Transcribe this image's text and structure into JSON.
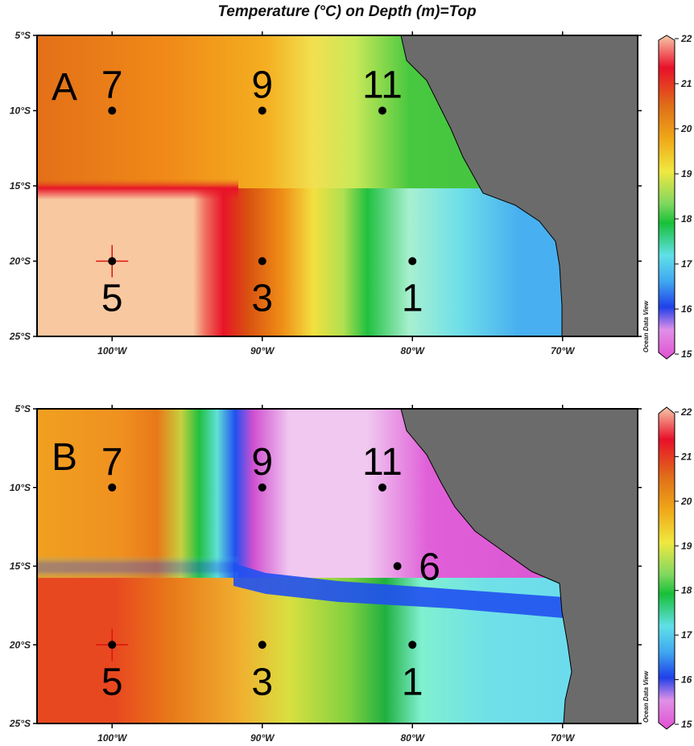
{
  "title": "Temperature (°C) on Depth (m)=Top",
  "watermark": "Ocean Data View",
  "chart_data": [
    {
      "panel": "A",
      "type": "heatmap",
      "variable": "Temperature (°C)",
      "lon_ticks": [
        "100°W",
        "90°W",
        "80°W",
        "70°W"
      ],
      "lat_ticks": [
        "5°S",
        "10°S",
        "15°S",
        "20°S",
        "25°S"
      ],
      "xlim": [
        -105,
        -65
      ],
      "ylim": [
        -25,
        -5
      ],
      "colorbar": {
        "min": 15,
        "max": 22,
        "ticks": [
          "22",
          "21",
          "20",
          "19",
          "18",
          "17",
          "16",
          "15"
        ]
      },
      "stations": [
        {
          "label": "7",
          "lon": -100,
          "lat": -10
        },
        {
          "label": "9",
          "lon": -90,
          "lat": -10
        },
        {
          "label": "11",
          "lon": -82,
          "lat": -10
        },
        {
          "label": "5",
          "lon": -100,
          "lat": -20,
          "marker": "cross"
        },
        {
          "label": "3",
          "lon": -90,
          "lat": -20
        },
        {
          "label": "1",
          "lon": -80,
          "lat": -20
        }
      ]
    },
    {
      "panel": "B",
      "type": "heatmap",
      "variable": "Temperature (°C)",
      "lon_ticks": [
        "100°W",
        "90°W",
        "80°W",
        "70°W"
      ],
      "lat_ticks": [
        "5°S",
        "10°S",
        "15°S",
        "20°S",
        "25°S"
      ],
      "xlim": [
        -105,
        -65
      ],
      "ylim": [
        -25,
        -5
      ],
      "colorbar": {
        "min": 15,
        "max": 22,
        "ticks": [
          "22",
          "21",
          "20",
          "19",
          "18",
          "17",
          "16",
          "15"
        ]
      },
      "stations": [
        {
          "label": "7",
          "lon": -100,
          "lat": -10
        },
        {
          "label": "9",
          "lon": -90,
          "lat": -10
        },
        {
          "label": "11",
          "lon": -82,
          "lat": -10
        },
        {
          "label": "6",
          "lon": -81,
          "lat": -15
        },
        {
          "label": "5",
          "lon": -100,
          "lat": -20,
          "marker": "cross"
        },
        {
          "label": "3",
          "lon": -90,
          "lat": -20
        },
        {
          "label": "1",
          "lon": -80,
          "lat": -20
        }
      ]
    }
  ],
  "colors": {
    "land": "#6b6b6b",
    "colorbar_stops": [
      "#f8c8a8",
      "#e8102a",
      "#f09010",
      "#f0e040",
      "#20c040",
      "#60e0e8",
      "#3060f0",
      "#e050d0"
    ]
  }
}
